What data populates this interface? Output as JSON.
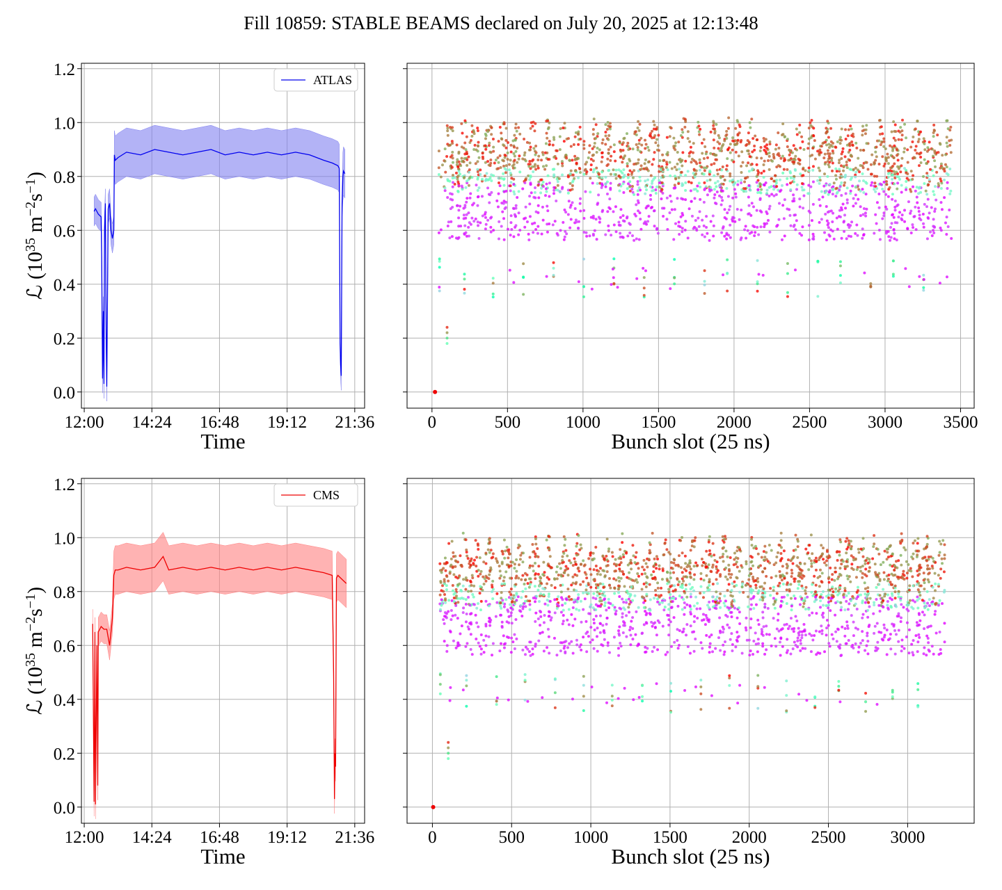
{
  "title": "Fill 10859: STABLE BEAMS declared on July 20, 2025 at 12:13:48",
  "chart_data": [
    {
      "type": "line",
      "panel": "top-left",
      "xlabel": "Time",
      "ylabel_main": "ℒ (10",
      "ylabel_exp1": "35",
      "ylabel_unit": " m",
      "ylabel_exp2": "−2",
      "ylabel_unit2": "s",
      "ylabel_exp3": "−1",
      "ylabel_close": ")",
      "xtick_labels": [
        "12:00",
        "14:24",
        "16:48",
        "19:12",
        "21:36"
      ],
      "xticks_hours": [
        12.0,
        14.4,
        16.8,
        19.2,
        21.6
      ],
      "xlim_hours": [
        11.9,
        21.95
      ],
      "ylim": [
        -0.06,
        1.22
      ],
      "yticks": [
        0.0,
        0.2,
        0.4,
        0.6,
        0.8,
        1.0,
        1.2
      ],
      "ytick_labels": [
        "0.0",
        "0.2",
        "0.4",
        "0.6",
        "0.8",
        "1.0",
        "1.2"
      ],
      "grid": true,
      "legend": {
        "label": "ATLAS",
        "position": "top-right"
      },
      "color": "#0000ee",
      "band_color": "#8080f0",
      "series": [
        {
          "name": "ATLAS",
          "x_hours": [
            12.35,
            12.4,
            12.5,
            12.6,
            12.62,
            12.65,
            12.68,
            12.7,
            12.72,
            12.75,
            12.78,
            12.8,
            12.85,
            12.9,
            12.95,
            13.0,
            13.05,
            13.07,
            13.1,
            13.2,
            13.5,
            14.0,
            14.5,
            15.0,
            15.5,
            16.0,
            16.5,
            17.0,
            17.5,
            18.0,
            18.5,
            19.0,
            19.5,
            20.0,
            20.5,
            20.8,
            21.0,
            21.05,
            21.08,
            21.1,
            21.12,
            21.15,
            21.18,
            21.2,
            21.25
          ],
          "y": [
            0.67,
            0.68,
            0.66,
            0.65,
            0.5,
            0.05,
            0.3,
            0.03,
            0.6,
            0.7,
            0.2,
            0.02,
            0.68,
            0.7,
            0.6,
            0.57,
            0.6,
            0.88,
            0.86,
            0.87,
            0.89,
            0.88,
            0.9,
            0.89,
            0.88,
            0.89,
            0.9,
            0.88,
            0.89,
            0.88,
            0.89,
            0.88,
            0.89,
            0.88,
            0.86,
            0.85,
            0.84,
            0.83,
            0.18,
            0.1,
            0.06,
            0.7,
            0.8,
            0.82,
            0.81
          ],
          "band_half_width": 0.09
        }
      ]
    },
    {
      "type": "scatter",
      "panel": "top-right",
      "xlabel": "Bunch slot (25 ns)",
      "xticks": [
        0,
        500,
        1000,
        1500,
        2000,
        2500,
        3000,
        3500
      ],
      "xtick_labels": [
        "0",
        "500",
        "1000",
        "1500",
        "2000",
        "2500",
        "3000",
        "3500"
      ],
      "xlim": [
        -165,
        3590
      ],
      "ylim": [
        -0.06,
        1.22
      ],
      "grid": true,
      "colormap": "rainbow",
      "train_starts": [
        45,
        210,
        400,
        600,
        800,
        1000,
        1200,
        1400,
        1600,
        1800,
        1950,
        2150,
        2350,
        2550,
        2700,
        2900,
        3050,
        3250
      ],
      "train_length": 190,
      "points_total_approx": 2400,
      "levels": {
        "high": 0.88,
        "low": 0.65,
        "min_outliers": 0.35
      },
      "pilot": {
        "x": 20,
        "y": 0.0
      }
    },
    {
      "type": "line",
      "panel": "bottom-left",
      "xlabel": "Time",
      "ylabel_main": "ℒ (10",
      "ylabel_exp1": "35",
      "ylabel_unit": " m",
      "ylabel_exp2": "−2",
      "ylabel_unit2": "s",
      "ylabel_exp3": "−1",
      "ylabel_close": ")",
      "xtick_labels": [
        "12:00",
        "14:24",
        "16:48",
        "19:12",
        "21:36"
      ],
      "xticks_hours": [
        12.0,
        14.4,
        16.8,
        19.2,
        21.6
      ],
      "xlim_hours": [
        11.9,
        21.95
      ],
      "ylim": [
        -0.06,
        1.22
      ],
      "yticks": [
        0.0,
        0.2,
        0.4,
        0.6,
        0.8,
        1.0,
        1.2
      ],
      "ytick_labels": [
        "0.0",
        "0.2",
        "0.4",
        "0.6",
        "0.8",
        "1.0",
        "1.2"
      ],
      "grid": true,
      "legend": {
        "label": "CMS",
        "position": "top-right"
      },
      "color": "#ee0000",
      "band_color": "#ff8080",
      "series": [
        {
          "name": "CMS",
          "x_hours": [
            12.3,
            12.35,
            12.38,
            12.4,
            12.45,
            12.48,
            12.5,
            12.55,
            12.6,
            12.7,
            12.8,
            12.9,
            13.0,
            13.05,
            13.1,
            13.2,
            13.5,
            14.0,
            14.5,
            14.8,
            15.0,
            15.5,
            16.0,
            16.5,
            17.0,
            17.5,
            18.0,
            18.5,
            19.0,
            19.5,
            20.0,
            20.5,
            20.8,
            20.85,
            20.88,
            20.9,
            20.92,
            20.95,
            21.0,
            21.2,
            21.3
          ],
          "y": [
            0.68,
            0.02,
            0.65,
            0.01,
            0.6,
            0.08,
            0.65,
            0.66,
            0.67,
            0.66,
            0.66,
            0.6,
            0.7,
            0.86,
            0.88,
            0.88,
            0.89,
            0.88,
            0.89,
            0.93,
            0.88,
            0.89,
            0.88,
            0.89,
            0.88,
            0.89,
            0.88,
            0.89,
            0.88,
            0.89,
            0.88,
            0.87,
            0.86,
            0.5,
            0.03,
            0.2,
            0.15,
            0.85,
            0.86,
            0.84,
            0.83
          ],
          "band_half_width": 0.09
        }
      ]
    },
    {
      "type": "scatter",
      "panel": "bottom-right",
      "xlabel": "Bunch slot (25 ns)",
      "xticks": [
        0,
        500,
        1000,
        1500,
        2000,
        2500,
        3000
      ],
      "xtick_labels": [
        "0",
        "500",
        "1000",
        "1500",
        "2000",
        "2500",
        "3000"
      ],
      "xlim": [
        -160,
        3420
      ],
      "ylim": [
        -0.06,
        1.22
      ],
      "grid": true,
      "colormap": "rainbow",
      "train_starts": [
        45,
        210,
        400,
        580,
        770,
        950,
        1130,
        1320,
        1500,
        1690,
        1870,
        2050,
        2230,
        2410,
        2560,
        2730,
        2900,
        3060
      ],
      "train_length": 175,
      "points_total_approx": 2400,
      "levels": {
        "high": 0.88,
        "low": 0.65,
        "min_outliers": 0.35
      },
      "pilot": {
        "x": 5,
        "y": 0.0
      }
    }
  ]
}
